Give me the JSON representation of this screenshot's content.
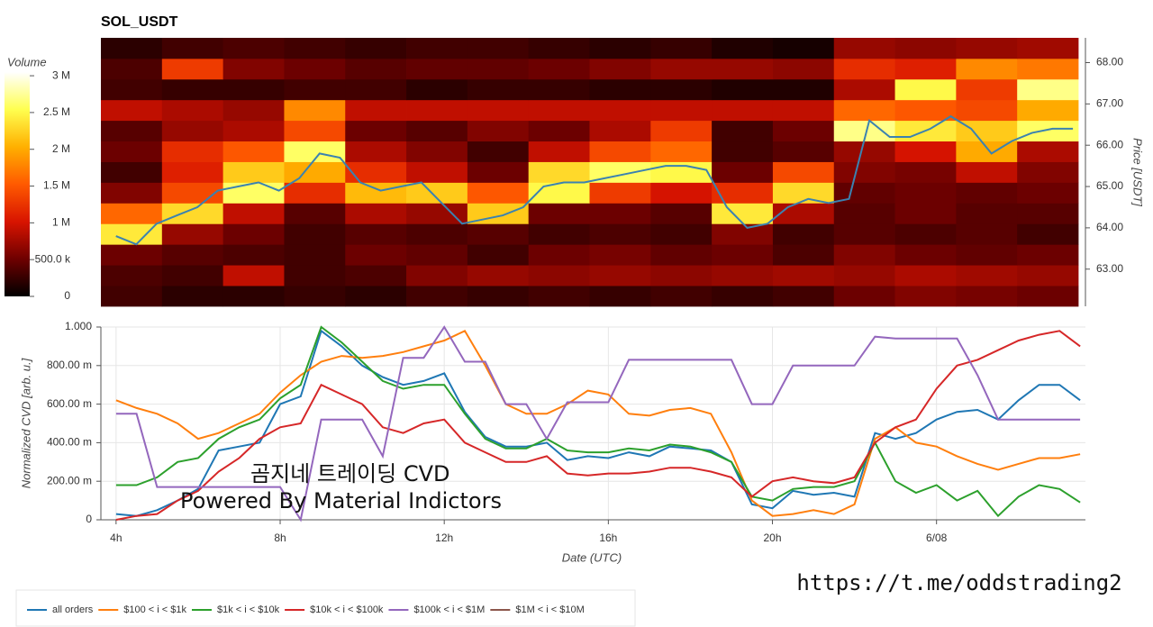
{
  "chart_data": [
    {
      "type": "heatmap",
      "title": "SOL_USDT",
      "ylabel": "Price [USDT]",
      "xlim": [
        3.63,
        27.63
      ],
      "ylim": [
        62.1,
        68.6
      ],
      "yticks": [
        {
          "value": 63,
          "label": "63.00"
        },
        {
          "value": 64,
          "label": "64.00"
        },
        {
          "value": 65,
          "label": "65.00"
        },
        {
          "value": 66,
          "label": "66.00"
        },
        {
          "value": 67,
          "label": "67.00"
        },
        {
          "value": 68,
          "label": "68.00"
        }
      ],
      "x_bins": [
        3.63,
        5.13,
        6.63,
        8.13,
        9.63,
        11.13,
        12.63,
        14.13,
        15.63,
        17.13,
        18.63,
        20.13,
        21.63,
        23.13,
        24.63,
        26.13,
        27.63
      ],
      "y_bins": [
        62.1,
        62.6,
        63.1,
        63.6,
        64.1,
        64.6,
        65.1,
        65.6,
        66.1,
        66.6,
        67.1,
        67.6,
        68.1,
        68.6
      ],
      "z": [
        [
          300000,
          200000,
          200000,
          250000,
          200000,
          300000,
          250000,
          300000,
          250000,
          300000,
          250000,
          300000,
          500000,
          600000,
          550000,
          500000
        ],
        [
          350000,
          300000,
          900000,
          300000,
          350000,
          600000,
          700000,
          650000,
          700000,
          650000,
          700000,
          750000,
          700000,
          800000,
          750000,
          700000
        ],
        [
          500000,
          400000,
          350000,
          300000,
          500000,
          450000,
          300000,
          500000,
          550000,
          450000,
          500000,
          350000,
          600000,
          500000,
          450000,
          500000
        ],
        [
          2400000,
          700000,
          500000,
          300000,
          400000,
          350000,
          400000,
          300000,
          350000,
          300000,
          600000,
          300000,
          400000,
          350000,
          400000,
          300000
        ],
        [
          1600000,
          2300000,
          900000,
          400000,
          800000,
          700000,
          2200000,
          500000,
          500000,
          400000,
          2400000,
          800000,
          400000,
          500000,
          400000,
          400000
        ],
        [
          600000,
          1400000,
          2600000,
          1200000,
          2100000,
          2200000,
          1500000,
          2500000,
          1300000,
          1000000,
          1200000,
          2300000,
          450000,
          500000,
          450000,
          500000
        ],
        [
          300000,
          1100000,
          2200000,
          2000000,
          1200000,
          900000,
          500000,
          2300000,
          2600000,
          2500000,
          500000,
          1400000,
          600000,
          550000,
          900000,
          600000
        ],
        [
          500000,
          1200000,
          1500000,
          2600000,
          800000,
          600000,
          300000,
          900000,
          1400000,
          1600000,
          300000,
          400000,
          700000,
          1000000,
          2000000,
          800000
        ],
        [
          400000,
          700000,
          800000,
          1400000,
          500000,
          400000,
          600000,
          500000,
          800000,
          1300000,
          300000,
          500000,
          2700000,
          2400000,
          2200000,
          2600000
        ],
        [
          900000,
          800000,
          700000,
          1800000,
          900000,
          900000,
          900000,
          900000,
          900000,
          900000,
          900000,
          900000,
          1600000,
          1500000,
          1400000,
          2000000
        ],
        [
          300000,
          250000,
          250000,
          300000,
          300000,
          200000,
          250000,
          250000,
          200000,
          200000,
          150000,
          150000,
          800000,
          2500000,
          1300000,
          2700000
        ],
        [
          350000,
          1300000,
          600000,
          500000,
          400000,
          450000,
          450000,
          500000,
          600000,
          700000,
          700000,
          650000,
          1200000,
          1100000,
          1800000,
          1700000
        ],
        [
          200000,
          300000,
          350000,
          300000,
          250000,
          300000,
          300000,
          250000,
          200000,
          250000,
          150000,
          100000,
          700000,
          650000,
          700000,
          750000
        ]
      ],
      "colorbar": {
        "title": "Volume",
        "zlim": [
          0,
          3050000
        ],
        "ticks": [
          0,
          {
            "value": 500000,
            "label": "500.0 k"
          },
          {
            "value": 1000000,
            "label": "1 M"
          },
          {
            "value": 1500000,
            "label": "1.5 M"
          },
          {
            "value": 2000000,
            "label": "2 M"
          },
          {
            "value": 2500000,
            "label": "2.5 M"
          },
          {
            "value": 3000000,
            "label": "3 M"
          }
        ],
        "colors": [
          "#000000",
          "#6e0000",
          "#d81400",
          "#ff5a00",
          "#ffb000",
          "#ffff50",
          "#ffffff"
        ]
      },
      "line": {
        "color": "#3b82b0",
        "x": [
          4,
          4.5,
          5,
          5.5,
          6,
          6.5,
          7,
          7.5,
          8,
          8.5,
          9,
          9.5,
          10,
          10.5,
          11,
          11.5,
          12,
          12.5,
          13,
          13.5,
          14,
          14.5,
          15,
          15.5,
          16,
          16.5,
          17,
          17.5,
          18,
          18.5,
          19,
          19.5,
          20,
          20.5,
          21,
          21.5,
          22,
          22.5,
          23,
          23.5,
          24,
          24.5,
          25,
          25.5,
          26,
          26.5,
          27,
          27.5
        ],
        "values": [
          63.8,
          63.6,
          64.1,
          64.3,
          64.5,
          64.9,
          65.0,
          65.1,
          64.9,
          65.2,
          65.8,
          65.7,
          65.1,
          64.9,
          65.0,
          65.1,
          64.6,
          64.1,
          64.2,
          64.3,
          64.5,
          65.0,
          65.1,
          65.1,
          65.2,
          65.3,
          65.4,
          65.5,
          65.5,
          65.4,
          64.5,
          64.0,
          64.1,
          64.5,
          64.7,
          64.6,
          64.7,
          66.6,
          66.2,
          66.2,
          66.4,
          66.7,
          66.4,
          65.8,
          66.1,
          66.3,
          66.4,
          66.4
        ]
      }
    },
    {
      "type": "line",
      "xlabel": "Date (UTC)",
      "ylabel": "Normalized CVD [arb. u.]",
      "xlim": [
        3.63,
        27.63
      ],
      "ylim": [
        0,
        1
      ],
      "xticks": [
        {
          "value": 4,
          "label": "4h"
        },
        {
          "value": 8,
          "label": "8h"
        },
        {
          "value": 12,
          "label": "12h"
        },
        {
          "value": 16,
          "label": "16h"
        },
        {
          "value": 20,
          "label": "20h"
        },
        {
          "value": 24,
          "label": "6/08"
        }
      ],
      "yticks": [
        0,
        {
          "value": 0.2,
          "label": "200.00 m"
        },
        {
          "value": 0.4,
          "label": "400.00 m"
        },
        {
          "value": 0.6,
          "label": "600.00 m"
        },
        {
          "value": 0.8,
          "label": "800.00 m"
        },
        {
          "value": 1,
          "label": "1.000"
        }
      ],
      "grid": true,
      "legend": "bottom-left",
      "x": [
        4,
        4.5,
        5,
        5.5,
        6,
        6.5,
        7,
        7.5,
        8,
        8.5,
        9,
        9.5,
        10,
        10.5,
        11,
        11.5,
        12,
        12.5,
        13,
        13.5,
        14,
        14.5,
        15,
        15.5,
        16,
        16.5,
        17,
        17.5,
        18,
        18.5,
        19,
        19.5,
        20,
        20.5,
        21,
        21.5,
        22,
        22.5,
        23,
        23.5,
        24,
        24.5,
        25,
        25.5,
        26,
        26.5,
        27,
        27.5
      ],
      "series": [
        {
          "name": "all orders",
          "color": "#1f77b4",
          "values": [
            0.03,
            0.02,
            0.05,
            0.1,
            0.16,
            0.36,
            0.38,
            0.4,
            0.6,
            0.64,
            0.98,
            0.9,
            0.8,
            0.74,
            0.7,
            0.72,
            0.76,
            0.56,
            0.43,
            0.38,
            0.38,
            0.4,
            0.31,
            0.33,
            0.32,
            0.35,
            0.33,
            0.38,
            0.37,
            0.36,
            0.3,
            0.08,
            0.06,
            0.15,
            0.13,
            0.14,
            0.12,
            0.45,
            0.42,
            0.45,
            0.52,
            0.56,
            0.57,
            0.52,
            0.62,
            0.7,
            0.7,
            0.62
          ]
        },
        {
          "name": "$100 < i < $1k",
          "color": "#ff7f0e",
          "values": [
            0.62,
            0.58,
            0.55,
            0.5,
            0.42,
            0.45,
            0.5,
            0.55,
            0.66,
            0.75,
            0.82,
            0.85,
            0.84,
            0.85,
            0.87,
            0.9,
            0.93,
            0.98,
            0.8,
            0.6,
            0.55,
            0.55,
            0.6,
            0.67,
            0.65,
            0.55,
            0.54,
            0.57,
            0.58,
            0.55,
            0.35,
            0.1,
            0.02,
            0.03,
            0.05,
            0.03,
            0.08,
            0.42,
            0.48,
            0.4,
            0.38,
            0.33,
            0.29,
            0.26,
            0.29,
            0.32,
            0.32,
            0.34
          ]
        },
        {
          "name": "$1k < i < $10k",
          "color": "#2ca02c",
          "values": [
            0.18,
            0.18,
            0.22,
            0.3,
            0.32,
            0.42,
            0.48,
            0.52,
            0.63,
            0.7,
            1.0,
            0.92,
            0.82,
            0.72,
            0.68,
            0.7,
            0.7,
            0.55,
            0.42,
            0.37,
            0.37,
            0.42,
            0.36,
            0.35,
            0.35,
            0.37,
            0.36,
            0.39,
            0.38,
            0.35,
            0.3,
            0.12,
            0.1,
            0.16,
            0.17,
            0.17,
            0.2,
            0.4,
            0.2,
            0.14,
            0.18,
            0.1,
            0.15,
            0.02,
            0.12,
            0.18,
            0.16,
            0.09
          ]
        },
        {
          "name": "$10k < i < $100k",
          "color": "#d62728",
          "values": [
            0.0,
            0.02,
            0.03,
            0.1,
            0.15,
            0.25,
            0.32,
            0.42,
            0.48,
            0.5,
            0.7,
            0.65,
            0.6,
            0.48,
            0.45,
            0.5,
            0.52,
            0.4,
            0.35,
            0.3,
            0.3,
            0.33,
            0.24,
            0.23,
            0.24,
            0.24,
            0.25,
            0.27,
            0.27,
            0.25,
            0.22,
            0.12,
            0.2,
            0.22,
            0.2,
            0.19,
            0.22,
            0.4,
            0.48,
            0.52,
            0.68,
            0.8,
            0.83,
            0.88,
            0.93,
            0.96,
            0.98,
            0.9
          ]
        },
        {
          "name": "$100k < i < $1M",
          "color": "#9467bd",
          "values": [
            0.55,
            0.55,
            0.17,
            0.17,
            0.17,
            0.17,
            0.17,
            0.17,
            0.17,
            0.0,
            0.52,
            0.52,
            0.52,
            0.33,
            0.84,
            0.84,
            1.0,
            0.82,
            0.82,
            0.6,
            0.6,
            0.42,
            0.61,
            0.61,
            0.61,
            0.83,
            0.83,
            0.83,
            0.83,
            0.83,
            0.83,
            0.6,
            0.6,
            0.8,
            0.8,
            0.8,
            0.8,
            0.95,
            0.94,
            0.94,
            0.94,
            0.94,
            0.75,
            0.52,
            0.52,
            0.52,
            0.52,
            0.52
          ]
        },
        {
          "name": "$1M < i < $10M",
          "color": "#8c564b",
          "values": [
            null,
            null,
            null,
            null,
            null,
            null,
            null,
            null,
            null,
            null,
            null,
            null,
            null,
            null,
            null,
            null,
            null,
            null,
            null,
            null,
            null,
            null,
            null,
            null,
            null,
            null,
            null,
            null,
            null,
            null,
            null,
            null,
            null,
            null,
            null,
            null,
            null,
            null,
            null,
            null,
            null,
            null,
            null,
            null,
            null,
            null,
            null,
            null
          ]
        }
      ]
    }
  ],
  "annotations": {
    "watermark": [
      "곰지네 트레이딩 CVD",
      "Powered By Material Indictors"
    ],
    "url": "https://t.me/oddstrading2"
  }
}
